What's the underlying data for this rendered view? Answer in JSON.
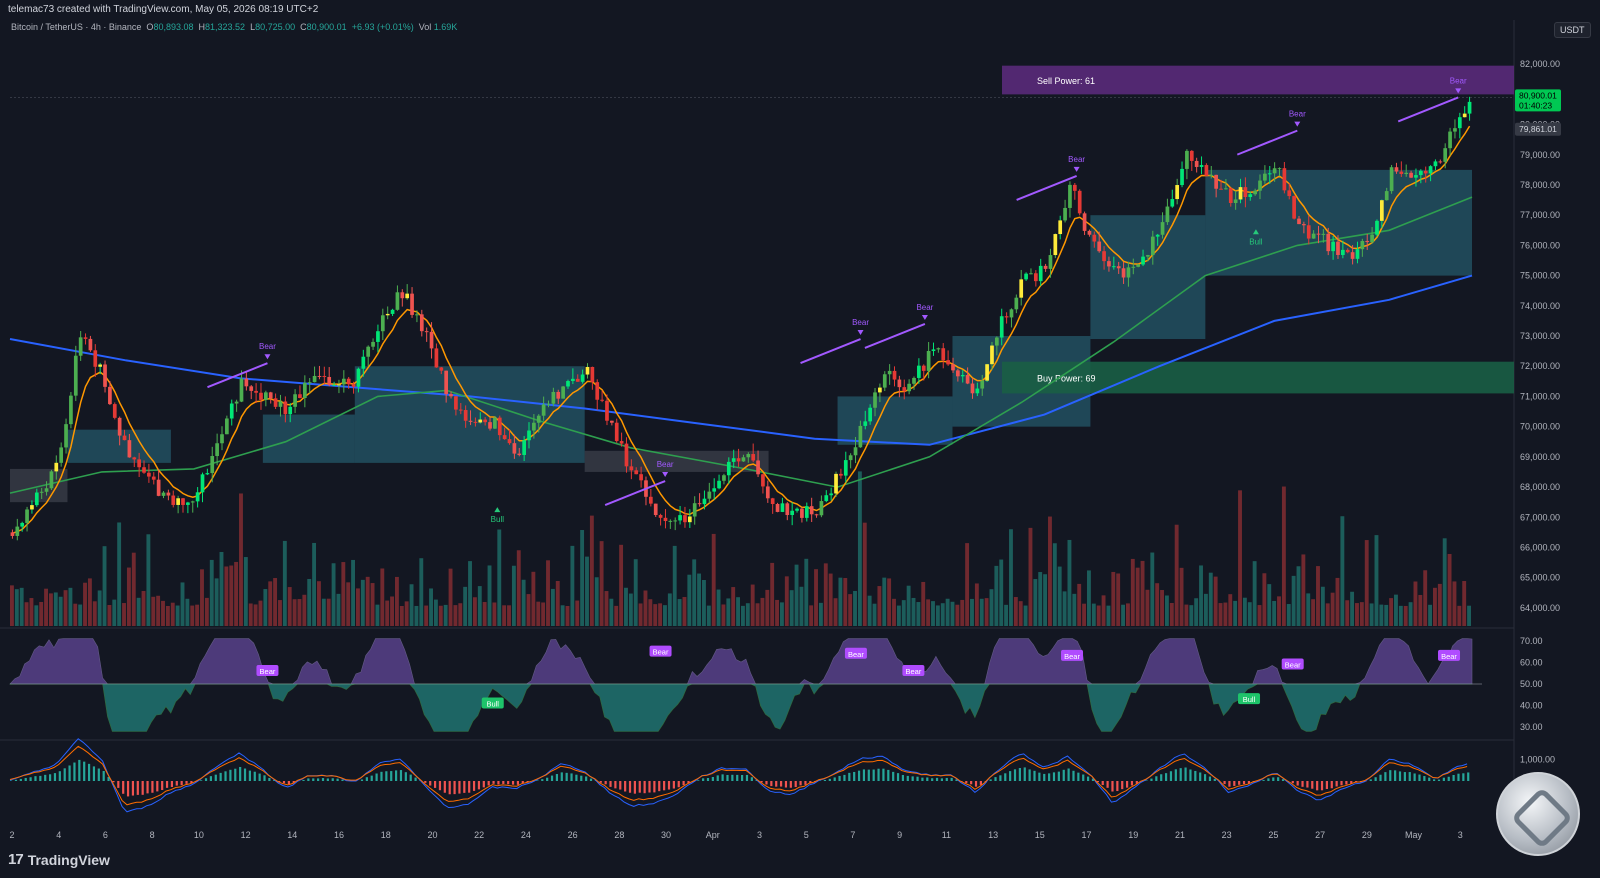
{
  "header": {
    "attribution": "telemac73 created with TradingView.com, May 05, 2026 08:19 UTC+2",
    "symbol": "Bitcoin / TetherUS · 4h · Binance",
    "o_label": "O",
    "o": "80,893.08",
    "h_label": "H",
    "h": "81,323.52",
    "l_label": "L",
    "l": "80,725.00",
    "c_label": "C",
    "c": "80,900.01",
    "change": "+6.93 (+0.01%)",
    "vol_label": "Vol",
    "vol": "1.69K",
    "currency": "USDT"
  },
  "footer": {
    "brand": "TradingView",
    "logo": "17"
  },
  "colors": {
    "bg": "#131722",
    "up": "#4caf50",
    "up_bright": "#00e676",
    "down": "#ef5350",
    "ema_fast": "#ff9800",
    "ema_mid": "#2e9f4f",
    "ema_slow": "#2962ff",
    "cloud": "#2a6f84",
    "bear_div": "#a259ff",
    "bull_div": "#26c97a",
    "sell_zone": "#5a2a7a",
    "buy_zone": "#1a5e45"
  },
  "chart_data": {
    "type": "candlestick",
    "x_labels": [
      "2",
      "4",
      "6",
      "8",
      "10",
      "12",
      "14",
      "16",
      "18",
      "20",
      "22",
      "24",
      "26",
      "28",
      "30",
      "Apr",
      "3",
      "5",
      "7",
      "9",
      "11",
      "13",
      "15",
      "17",
      "19",
      "21",
      "23",
      "25",
      "27",
      "29",
      "May",
      "3"
    ],
    "y_ticks": [
      "82,000.00",
      "81,000.00",
      "80,000.00",
      "79,000.00",
      "78,000.00",
      "77,000.00",
      "76,000.00",
      "75,000.00",
      "74,000.00",
      "73,000.00",
      "72,000.00",
      "71,000.00",
      "70,000.00",
      "69,000.00",
      "68,000.00",
      "67,000.00",
      "66,000.00",
      "65,000.00",
      "64,000.00"
    ],
    "ylim": [
      63400,
      82800
    ],
    "price_path": [
      [
        0,
        66500
      ],
      [
        2,
        68700
      ],
      [
        3,
        73200
      ],
      [
        4,
        71500
      ],
      [
        5,
        69000
      ],
      [
        6,
        68200
      ],
      [
        7,
        67500
      ],
      [
        8,
        67800
      ],
      [
        9,
        69500
      ],
      [
        10,
        71500
      ],
      [
        11,
        71000
      ],
      [
        12,
        70500
      ],
      [
        13,
        71800
      ],
      [
        14,
        71200
      ],
      [
        15,
        71600
      ],
      [
        16,
        73500
      ],
      [
        17,
        74500
      ],
      [
        18,
        73000
      ],
      [
        19,
        71000
      ],
      [
        20,
        70000
      ],
      [
        21,
        70200
      ],
      [
        22,
        69000
      ],
      [
        23,
        70500
      ],
      [
        24,
        71300
      ],
      [
        25,
        71800
      ],
      [
        26,
        70000
      ],
      [
        27,
        68500
      ],
      [
        28,
        67000
      ],
      [
        29,
        66800
      ],
      [
        30,
        67500
      ],
      [
        31,
        68500
      ],
      [
        32,
        69100
      ],
      [
        33,
        67200
      ],
      [
        34,
        67300
      ],
      [
        35,
        67000
      ],
      [
        36,
        68500
      ],
      [
        37,
        70000
      ],
      [
        38,
        71700
      ],
      [
        39,
        71300
      ],
      [
        40,
        72500
      ],
      [
        41,
        72000
      ],
      [
        42,
        71000
      ],
      [
        43,
        73500
      ],
      [
        44,
        74800
      ],
      [
        45,
        75200
      ],
      [
        46,
        78000
      ],
      [
        47,
        76000
      ],
      [
        48,
        75000
      ],
      [
        49,
        75300
      ],
      [
        50,
        76600
      ],
      [
        51,
        79000
      ],
      [
        52,
        78300
      ],
      [
        53,
        77600
      ],
      [
        54,
        77800
      ],
      [
        55,
        78800
      ],
      [
        56,
        76500
      ],
      [
        57,
        76200
      ],
      [
        58,
        75600
      ],
      [
        59,
        76200
      ],
      [
        60,
        78500
      ],
      [
        61,
        78400
      ],
      [
        62,
        78700
      ],
      [
        63,
        80300
      ],
      [
        63.6,
        80900
      ]
    ],
    "price_last": "80,900.01",
    "countdown": "01:40:23",
    "ref_price": "79,861.01",
    "zones": [
      {
        "label": "Sell Power: 61",
        "from": 81000,
        "to": 81950
      },
      {
        "label": "Buy Power: 69",
        "from": 71100,
        "to": 72150
      }
    ],
    "ema_slow": [
      [
        0,
        72900
      ],
      [
        5,
        72200
      ],
      [
        10,
        71600
      ],
      [
        15,
        71300
      ],
      [
        20,
        71000
      ],
      [
        25,
        70600
      ],
      [
        30,
        70100
      ],
      [
        35,
        69600
      ],
      [
        40,
        69400
      ],
      [
        45,
        70400
      ],
      [
        50,
        72000
      ],
      [
        55,
        73500
      ],
      [
        60,
        74200
      ],
      [
        63.6,
        75000
      ]
    ],
    "ema_mid": [
      [
        0,
        67800
      ],
      [
        4,
        68500
      ],
      [
        8,
        68600
      ],
      [
        12,
        69500
      ],
      [
        16,
        71000
      ],
      [
        19,
        71200
      ],
      [
        23,
        70200
      ],
      [
        27,
        69300
      ],
      [
        32,
        68600
      ],
      [
        36,
        68000
      ],
      [
        40,
        69000
      ],
      [
        44,
        70800
      ],
      [
        48,
        72800
      ],
      [
        52,
        75000
      ],
      [
        56,
        76000
      ],
      [
        60,
        76500
      ],
      [
        63.6,
        77600
      ]
    ],
    "cloud": [
      {
        "from": 0,
        "to": 2.5,
        "top": 68600,
        "bottom": 67500,
        "tone": "gray"
      },
      {
        "from": 2.5,
        "to": 7,
        "top": 69900,
        "bottom": 68800,
        "tone": "teal"
      },
      {
        "from": 11,
        "to": 15,
        "top": 70400,
        "bottom": 68800,
        "tone": "teal"
      },
      {
        "from": 15,
        "to": 25,
        "top": 72000,
        "bottom": 68800,
        "tone": "teal"
      },
      {
        "from": 25,
        "to": 33,
        "top": 69200,
        "bottom": 68500,
        "tone": "gray"
      },
      {
        "from": 36,
        "to": 41,
        "top": 71000,
        "bottom": 69400,
        "tone": "teal"
      },
      {
        "from": 41,
        "to": 47,
        "top": 73000,
        "bottom": 70000,
        "tone": "teal"
      },
      {
        "from": 47,
        "to": 52,
        "top": 77000,
        "bottom": 72900,
        "tone": "teal"
      },
      {
        "from": 52,
        "to": 63.6,
        "top": 78500,
        "bottom": 75000,
        "tone": "teal"
      }
    ],
    "signals": [
      {
        "label": "Bear",
        "x": 11.2,
        "price": 72100,
        "kind": "bear"
      },
      {
        "label": "Bull",
        "x": 21.2,
        "price": 67500,
        "kind": "bull"
      },
      {
        "label": "Bear",
        "x": 28.5,
        "price": 68200,
        "kind": "bear"
      },
      {
        "label": "Bear",
        "x": 37,
        "price": 72900,
        "kind": "bear"
      },
      {
        "label": "Bear",
        "x": 39.8,
        "price": 73400,
        "kind": "bear"
      },
      {
        "label": "Bear",
        "x": 46.4,
        "price": 78300,
        "kind": "bear"
      },
      {
        "label": "Bull",
        "x": 54.2,
        "price": 76700,
        "kind": "bull"
      },
      {
        "label": "Bear",
        "x": 56,
        "price": 79800,
        "kind": "bear"
      },
      {
        "label": "Bear",
        "x": 63,
        "price": 80900,
        "kind": "bear"
      }
    ],
    "rsi": {
      "y_ticks": [
        "70.00",
        "60.00",
        "50.00",
        "40.00",
        "30.00"
      ],
      "ylim": [
        25,
        75
      ],
      "labels": [
        {
          "label": "Bear",
          "x": 11.2,
          "value": 56,
          "kind": "bear"
        },
        {
          "label": "Bull",
          "x": 21,
          "value": 41,
          "kind": "bull"
        },
        {
          "label": "Bear",
          "x": 28.3,
          "value": 65,
          "kind": "bear"
        },
        {
          "label": "Bear",
          "x": 36.8,
          "value": 64,
          "kind": "bear"
        },
        {
          "label": "Bear",
          "x": 39.3,
          "value": 56,
          "kind": "bear"
        },
        {
          "label": "Bear",
          "x": 46.2,
          "value": 63,
          "kind": "bear"
        },
        {
          "label": "Bull",
          "x": 53.9,
          "value": 43,
          "kind": "bull"
        },
        {
          "label": "Bear",
          "x": 55.8,
          "value": 59,
          "kind": "bear"
        },
        {
          "label": "Bear",
          "x": 62.6,
          "value": 63,
          "kind": "bear"
        }
      ]
    },
    "macd": {
      "y_ticks": [
        "1,000.00",
        "0.00"
      ],
      "ylim": [
        -1800,
        1800
      ]
    }
  }
}
